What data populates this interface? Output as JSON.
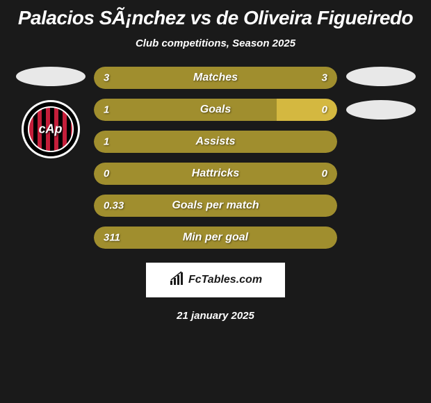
{
  "title": "Palacios SÃ¡nchez vs de Oliveira Figueiredo",
  "subtitle": "Club competitions, Season 2025",
  "date": "21 january 2025",
  "footer": {
    "brand": "FcTables.com"
  },
  "colors": {
    "primary_left": "#a08e2e",
    "primary_right": "#d4b840",
    "background": "#1a1a1a",
    "text": "#ffffff"
  },
  "club_badge": {
    "label": "cAp",
    "stripe_red": "#c41e3a",
    "stripe_black": "#000000"
  },
  "stats": [
    {
      "label": "Matches",
      "left_value": "3",
      "right_value": "3",
      "left_pct": 50,
      "right_pct": 50,
      "left_color": "#a08e2e",
      "right_color": "#a08e2e",
      "show_right": true
    },
    {
      "label": "Goals",
      "left_value": "1",
      "right_value": "0",
      "left_pct": 75,
      "right_pct": 25,
      "left_color": "#a08e2e",
      "right_color": "#d4b840",
      "show_right": true
    },
    {
      "label": "Assists",
      "left_value": "1",
      "right_value": "",
      "left_pct": 100,
      "right_pct": 0,
      "left_color": "#a08e2e",
      "right_color": "#a08e2e",
      "show_right": false
    },
    {
      "label": "Hattricks",
      "left_value": "0",
      "right_value": "0",
      "left_pct": 50,
      "right_pct": 50,
      "left_color": "#a08e2e",
      "right_color": "#a08e2e",
      "show_right": true
    },
    {
      "label": "Goals per match",
      "left_value": "0.33",
      "right_value": "",
      "left_pct": 100,
      "right_pct": 0,
      "left_color": "#a08e2e",
      "right_color": "#a08e2e",
      "show_right": false
    },
    {
      "label": "Min per goal",
      "left_value": "311",
      "right_value": "",
      "left_pct": 100,
      "right_pct": 0,
      "left_color": "#a08e2e",
      "right_color": "#a08e2e",
      "show_right": false
    }
  ]
}
